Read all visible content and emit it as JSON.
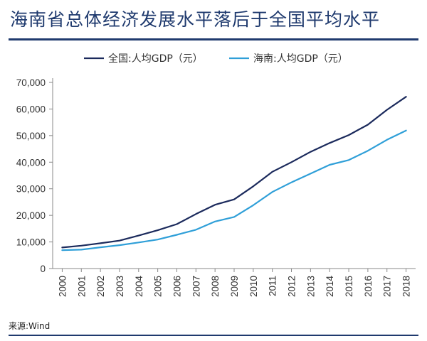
{
  "header": {
    "title": "海南省总体经济发展水平落后于全国平均水平"
  },
  "footer": {
    "source": "来源:Wind"
  },
  "colors": {
    "title": "#1f3a6e",
    "national": "#1b2a5c",
    "hainan": "#2f9fd8",
    "axis": "#888888"
  },
  "chart_data": {
    "type": "line",
    "x": [
      "2000",
      "2001",
      "2002",
      "2003",
      "2004",
      "2005",
      "2006",
      "2007",
      "2008",
      "2009",
      "2010",
      "2011",
      "2012",
      "2013",
      "2014",
      "2015",
      "2016",
      "2017",
      "2018"
    ],
    "series": [
      {
        "name": "全国:人均GDP（元）",
        "color": "#1b2a5c",
        "values": [
          7900,
          8600,
          9500,
          10500,
          12400,
          14400,
          16700,
          20500,
          24000,
          26000,
          30900,
          36400,
          40000,
          43900,
          47200,
          50200,
          54100,
          59700,
          64600
        ]
      },
      {
        "name": "海南:人均GDP（元）",
        "color": "#2f9fd8",
        "values": [
          6900,
          7100,
          8000,
          8800,
          9800,
          10900,
          12700,
          14600,
          17700,
          19400,
          23800,
          28800,
          32400,
          35700,
          39000,
          40800,
          44300,
          48400,
          51900
        ]
      }
    ],
    "ylim": [
      0,
      70000
    ],
    "yticks": [
      "0",
      "10,000",
      "20,000",
      "30,000",
      "40,000",
      "50,000",
      "60,000",
      "70,000"
    ],
    "grid": false,
    "legend": "top-center"
  }
}
